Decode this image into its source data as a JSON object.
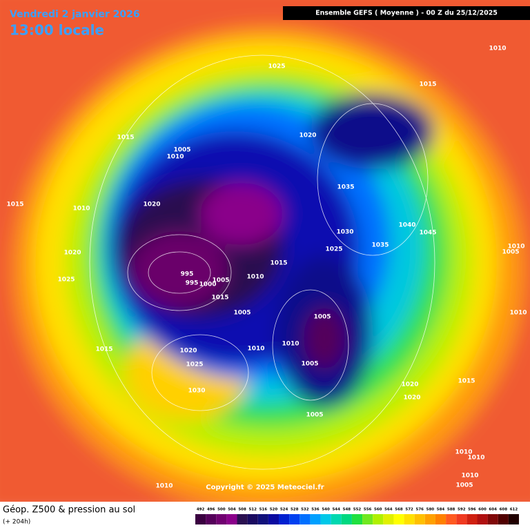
{
  "header": {
    "date": "Vendredi 2 janvier 2026",
    "time": "13:00 locale",
    "model": "Ensemble GEFS  ( Moyenne )  -  00 Z du 25/12/2025"
  },
  "copyright": "Copyright © 2025 Meteociel.fr",
  "footer": {
    "title": "Géop. Z500 & pression au sol",
    "lead": "(+ 204h)"
  },
  "isobars": [
    1025,
    1010,
    1015,
    1015,
    1005,
    1010,
    1020,
    1015,
    1010,
    1020,
    1035,
    1030,
    1040,
    1045,
    1035,
    1025,
    1020,
    1015,
    1010,
    1005,
    995,
    995,
    1005,
    1000,
    1010,
    1025,
    1015,
    1005,
    1010,
    1005,
    1010,
    1015,
    1020,
    1010,
    1005,
    1025,
    1030,
    1020,
    1020,
    1015,
    1005,
    1010,
    1010,
    1010,
    1005,
    1010
  ],
  "legend": {
    "levels": [
      492,
      496,
      500,
      504,
      508,
      512,
      516,
      520,
      524,
      528,
      532,
      536,
      540,
      544,
      548,
      552,
      556,
      560,
      564,
      568,
      572,
      576,
      580,
      584,
      588,
      592,
      596,
      600,
      604,
      608,
      612
    ],
    "colors": [
      "#3a0040",
      "#55005a",
      "#700070",
      "#8a008a",
      "#2a1050",
      "#1a0a60",
      "#10107a",
      "#0a0aa0",
      "#0020d0",
      "#0040f0",
      "#0070ff",
      "#00a0ff",
      "#00c8e8",
      "#00d8b0",
      "#00d880",
      "#20e040",
      "#70e820",
      "#b0f000",
      "#e0f000",
      "#ffff00",
      "#ffe000",
      "#ffc000",
      "#ffa000",
      "#ff8000",
      "#ff5a20",
      "#f03a20",
      "#d02010",
      "#b01010",
      "#800808",
      "#500000",
      "#200000"
    ]
  }
}
